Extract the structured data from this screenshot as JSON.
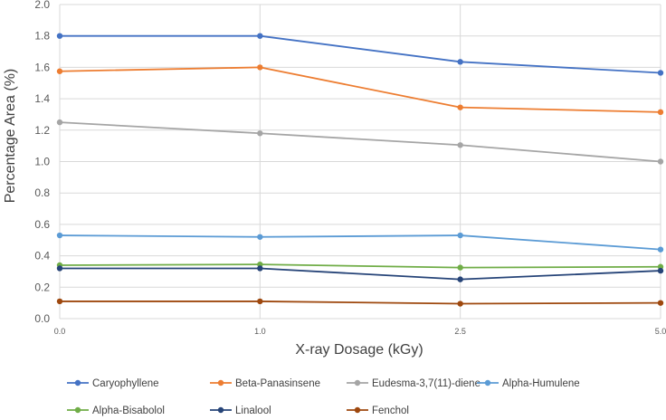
{
  "chart_data": {
    "type": "line",
    "title": "",
    "xlabel": "X-ray Dosage (kGy)",
    "ylabel": "Percentage Area (%)",
    "x": [
      0.0,
      1.0,
      2.5,
      5.0
    ],
    "x_tick_labels": [
      "0.0",
      "1.0",
      "2.5",
      "5.0"
    ],
    "ylim": [
      0,
      2.0
    ],
    "y_ticks": [
      0.0,
      0.2,
      0.4,
      0.6,
      0.8,
      1.0,
      1.2,
      1.4,
      1.6,
      1.8,
      2.0
    ],
    "y_tick_labels": [
      "0.0",
      "0.2",
      "0.4",
      "0.6",
      "0.8",
      "1.0",
      "1.2",
      "1.4",
      "1.6",
      "1.8",
      "2.0"
    ],
    "grid": true,
    "legend_position": "bottom",
    "series": [
      {
        "name": "Caryophyllene",
        "color": "#4472C4",
        "values": [
          1.8,
          1.8,
          1.635,
          1.565
        ]
      },
      {
        "name": "Beta-Panasinsene",
        "color": "#ED7D31",
        "values": [
          1.575,
          1.6,
          1.345,
          1.315
        ]
      },
      {
        "name": "Eudesma-3,7(11)-diene",
        "color": "#A5A5A5",
        "values": [
          1.25,
          1.18,
          1.105,
          1.0
        ]
      },
      {
        "name": "Alpha-Humulene",
        "color": "#5B9BD5",
        "values": [
          0.53,
          0.52,
          0.53,
          0.44
        ]
      },
      {
        "name": "Alpha-Bisabolol",
        "color": "#70AD47",
        "values": [
          0.34,
          0.345,
          0.325,
          0.33
        ]
      },
      {
        "name": "Linalool",
        "color": "#264478",
        "values": [
          0.32,
          0.32,
          0.25,
          0.305
        ]
      },
      {
        "name": "Fenchol",
        "color": "#9E480E",
        "values": [
          0.11,
          0.11,
          0.095,
          0.1
        ]
      }
    ]
  }
}
